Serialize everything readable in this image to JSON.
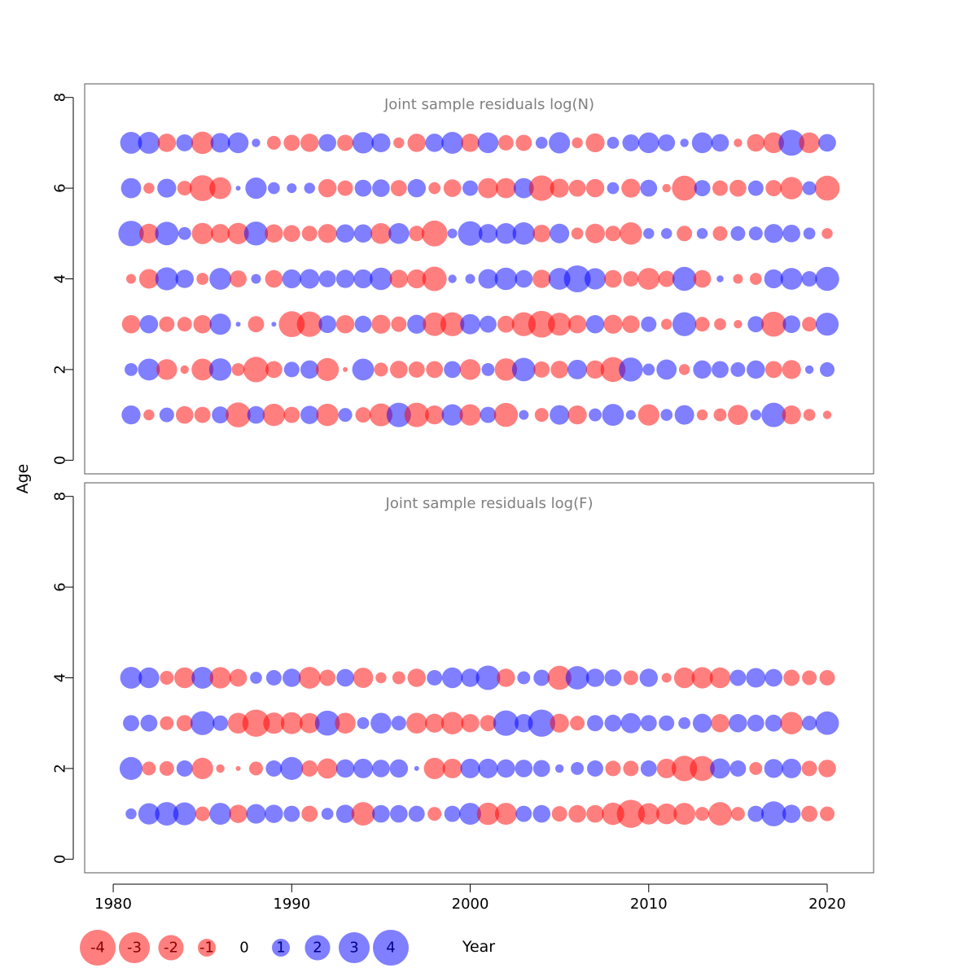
{
  "chart_data": {
    "type": "scatter",
    "subtype": "bubble",
    "xlabel": "Year",
    "ylabel": "Age",
    "xlim": [
      1978.4,
      2022.6
    ],
    "x_ticks": [
      1980,
      1990,
      2000,
      2010,
      2020
    ],
    "x_tick_labels": [
      "1980",
      "1990",
      "2000",
      "2010",
      "2020"
    ],
    "colors": {
      "positive": "#0000ff",
      "negative": "#ff0000",
      "opacity": 0.5
    },
    "legend": {
      "placement": "bottom-left",
      "values": [
        -4,
        -3,
        -2,
        -1,
        0,
        1,
        2,
        3,
        4
      ],
      "labels": [
        "-4",
        "-3",
        "-2",
        "-1",
        "0",
        "1",
        "2",
        "3",
        "4"
      ]
    },
    "panels": [
      {
        "title": "Joint sample residuals log(N)",
        "ylim": [
          -0.3,
          8.3
        ],
        "y_ticks": [
          0,
          2,
          4,
          6,
          8
        ],
        "y_tick_labels": [
          "0",
          "2",
          "4",
          "6",
          "8"
        ],
        "years": [
          1981,
          1982,
          1983,
          1984,
          1985,
          1986,
          1987,
          1988,
          1989,
          1990,
          1991,
          1992,
          1993,
          1994,
          1995,
          1996,
          1997,
          1998,
          1999,
          2000,
          2001,
          2002,
          2003,
          2004,
          2005,
          2006,
          2007,
          2008,
          2009,
          2010,
          2011,
          2012,
          2013,
          2014,
          2015,
          2016,
          2017,
          2018,
          2019,
          2020
        ],
        "ages": [
          1,
          2,
          3,
          4,
          5,
          6,
          7
        ],
        "residuals": [
          [
            1.5,
            -0.5,
            0.9,
            -1.3,
            -1.1,
            1.2,
            -2.6,
            1.3,
            -2.1,
            -1.1,
            1.4,
            -2.1,
            0.8,
            -1.0,
            -2.2,
            2.5,
            -2.5,
            -1.5,
            1.9,
            -1.9,
            1.1,
            -2.4,
            0.4,
            -0.8,
            1.6,
            -1.5,
            0.7,
            2.0,
            0.4,
            -1.9,
            0.6,
            1.6,
            -0.5,
            -0.7,
            -1.7,
            0.5,
            2.5,
            -1.5,
            -0.6,
            -0.3
          ],
          [
            0.7,
            2.0,
            -1.8,
            -0.3,
            -2.0,
            2.1,
            -0.7,
            -2.7,
            -1.2,
            1.0,
            1.4,
            -2.2,
            -0.1,
            2.0,
            -0.8,
            -1.3,
            -1.1,
            -1.2,
            1.2,
            -1.8,
            0.7,
            -2.1,
            2.3,
            -1.1,
            -1.3,
            1.6,
            -1.4,
            -2.6,
            2.4,
            0.6,
            1.7,
            -0.5,
            1.4,
            1.2,
            0.9,
            1.4,
            -1.2,
            -1.5,
            0.3,
            0.9
          ],
          [
            -1.4,
            1.4,
            -1.0,
            -0.9,
            -1.4,
            1.9,
            0.1,
            -1.1,
            0.1,
            -2.8,
            -2.7,
            1.3,
            -1.4,
            1.2,
            -1.5,
            -1.0,
            1.5,
            -2.3,
            -2.4,
            1.7,
            1.2,
            -1.2,
            -2.4,
            -3.0,
            -2.2,
            -1.4,
            1.4,
            -1.5,
            -1.3,
            1.0,
            -0.5,
            2.4,
            -0.9,
            -0.6,
            -0.3,
            1.1,
            -2.6,
            1.3,
            -0.9,
            2.2
          ],
          [
            -0.4,
            -1.6,
            2.2,
            1.4,
            -0.6,
            2.0,
            -1.2,
            0.4,
            -1.3,
            1.5,
            1.6,
            1.2,
            1.4,
            1.5,
            2.1,
            -1.4,
            -1.5,
            -2.5,
            0.3,
            0.4,
            1.6,
            2.1,
            1.3,
            -1.4,
            2.0,
            3.0,
            1.9,
            -1.3,
            -1.0,
            -2.0,
            -1.1,
            2.4,
            -1.3,
            0.2,
            -0.4,
            -0.6,
            1.5,
            2.0,
            1.0,
            2.4
          ],
          [
            2.7,
            -1.6,
            2.3,
            0.7,
            -1.9,
            -1.5,
            -1.9,
            2.4,
            -1.4,
            -1.2,
            -1.0,
            -1.5,
            1.4,
            1.4,
            -1.8,
            1.8,
            -1.0,
            -2.8,
            0.4,
            2.5,
            1.5,
            1.8,
            2.1,
            -1.3,
            1.6,
            -0.6,
            -1.6,
            -1.0,
            -2.1,
            0.5,
            0.5,
            -1.0,
            0.5,
            -0.9,
            0.9,
            0.8,
            1.5,
            1.3,
            0.6,
            -0.5
          ],
          [
            1.7,
            -0.5,
            1.5,
            -0.9,
            -2.8,
            -2.0,
            0.1,
            1.9,
            0.6,
            0.4,
            0.5,
            -1.4,
            -1.0,
            1.2,
            1.3,
            -1.1,
            1.4,
            -0.6,
            -1.3,
            1.0,
            -1.7,
            -1.7,
            1.7,
            -2.7,
            -1.5,
            -1.2,
            -1.4,
            0.6,
            -1.5,
            1.2,
            -0.3,
            -2.6,
            1.1,
            -1.0,
            -1.2,
            1.0,
            -1.1,
            -2.1,
            0.8,
            -2.6
          ],
          [
            2.0,
            2.0,
            -1.4,
            1.2,
            -2.1,
            1.6,
            1.8,
            0.3,
            -0.8,
            -1.1,
            -1.4,
            1.3,
            -1.1,
            1.9,
            1.5,
            -0.5,
            -1.4,
            1.4,
            2.0,
            -1.4,
            1.8,
            -1.0,
            -1.1,
            0.6,
            1.9,
            -0.5,
            -1.5,
            0.6,
            1.2,
            1.8,
            1.2,
            0.3,
            1.8,
            1.3,
            -0.3,
            -1.3,
            -1.8,
            2.8,
            -1.8,
            1.3
          ]
        ]
      },
      {
        "title": "Joint sample residuals log(F)",
        "ylim": [
          -0.3,
          8.3
        ],
        "y_ticks": [
          0,
          2,
          4,
          6,
          8
        ],
        "y_tick_labels": [
          "0",
          "2",
          "4",
          "6",
          "8"
        ],
        "years": [
          1981,
          1982,
          1983,
          1984,
          1985,
          1986,
          1987,
          1988,
          1989,
          1990,
          1991,
          1992,
          1993,
          1994,
          1995,
          1996,
          1997,
          1998,
          1999,
          2000,
          2001,
          2002,
          2003,
          2004,
          2005,
          2006,
          2007,
          2008,
          2009,
          2010,
          2011,
          2012,
          2013,
          2014,
          2015,
          2016,
          2017,
          2018,
          2019,
          2020
        ],
        "ages": [
          1,
          2,
          3,
          4
        ],
        "residuals": [
          [
            0.5,
            1.9,
            2.3,
            2.2,
            -0.9,
            2.0,
            -1.4,
            1.6,
            1.4,
            1.1,
            -1.1,
            0.6,
            1.4,
            -2.3,
            1.3,
            1.3,
            1.1,
            -0.8,
            1.1,
            2.0,
            -2.1,
            -2.0,
            1.1,
            1.3,
            -1.0,
            -1.3,
            -1.3,
            -2.1,
            -3.3,
            -1.9,
            -1.8,
            -2.0,
            -0.8,
            -2.3,
            -0.8,
            1.1,
            2.6,
            1.4,
            -1.1,
            -0.9
          ],
          [
            2.2,
            -0.8,
            -0.9,
            1.1,
            -1.9,
            -0.3,
            -0.1,
            -0.8,
            1.1,
            2.2,
            -1.1,
            -1.7,
            1.4,
            1.6,
            1.3,
            1.4,
            0.1,
            -1.9,
            -1.6,
            1.6,
            1.6,
            1.4,
            1.3,
            1.2,
            0.3,
            0.7,
            1.1,
            -1.0,
            -1.0,
            1.1,
            -1.6,
            -2.7,
            -2.6,
            1.7,
            1.1,
            -0.7,
            1.5,
            1.6,
            -1.0,
            -1.3
          ],
          [
            1.1,
            1.2,
            -0.8,
            -1.1,
            2.4,
            1.0,
            -1.8,
            -3.1,
            -1.9,
            -2.0,
            -1.7,
            2.6,
            -1.8,
            0.6,
            1.8,
            0.9,
            -1.8,
            -1.5,
            -2.1,
            -1.4,
            -1.1,
            2.7,
            1.4,
            3.1,
            -1.5,
            -0.9,
            1.1,
            1.2,
            1.7,
            1.1,
            1.0,
            0.6,
            1.5,
            -1.4,
            1.4,
            1.2,
            1.2,
            -2.1,
            0.9,
            2.3
          ],
          [
            2.0,
            1.8,
            -0.8,
            -1.8,
            2.0,
            -1.9,
            -1.3,
            0.6,
            1.0,
            1.4,
            -2.0,
            -1.1,
            1.3,
            -1.7,
            -0.5,
            -0.7,
            -1.4,
            1.0,
            1.8,
            1.4,
            2.5,
            -1.4,
            0.7,
            1.1,
            -2.4,
            2.3,
            1.4,
            1.2,
            -0.9,
            1.4,
            -0.4,
            -1.8,
            -1.9,
            -1.8,
            1.1,
            1.6,
            1.3,
            -1.1,
            -0.9,
            -1.0
          ]
        ]
      }
    ]
  }
}
